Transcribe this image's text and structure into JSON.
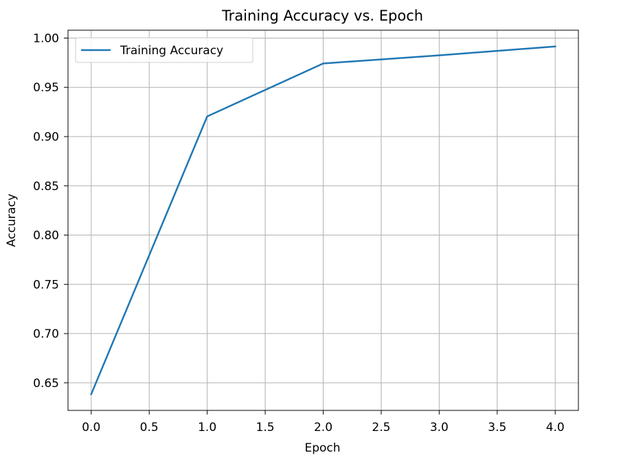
{
  "chart_data": {
    "type": "line",
    "title": "Training Accuracy vs. Epoch",
    "xlabel": "Epoch",
    "ylabel": "Accuracy",
    "x": [
      0,
      1,
      2,
      3,
      4
    ],
    "series": [
      {
        "name": "Training Accuracy",
        "values": [
          0.6385,
          0.9205,
          0.9742,
          0.9825,
          0.9915
        ],
        "color": "#1f77b4"
      }
    ],
    "xlim": [
      -0.2,
      4.2
    ],
    "ylim": [
      0.622,
      1.008
    ],
    "xticks": [
      0.0,
      0.5,
      1.0,
      1.5,
      2.0,
      2.5,
      3.0,
      3.5,
      4.0
    ],
    "xtick_labels": [
      "0.0",
      "0.5",
      "1.0",
      "1.5",
      "2.0",
      "2.5",
      "3.0",
      "3.5",
      "4.0"
    ],
    "yticks": [
      0.65,
      0.7,
      0.75,
      0.8,
      0.85,
      0.9,
      0.95,
      1.0
    ],
    "ytick_labels": [
      "0.65",
      "0.70",
      "0.75",
      "0.80",
      "0.85",
      "0.90",
      "0.95",
      "1.00"
    ],
    "grid": true,
    "legend_position": "upper-left"
  }
}
